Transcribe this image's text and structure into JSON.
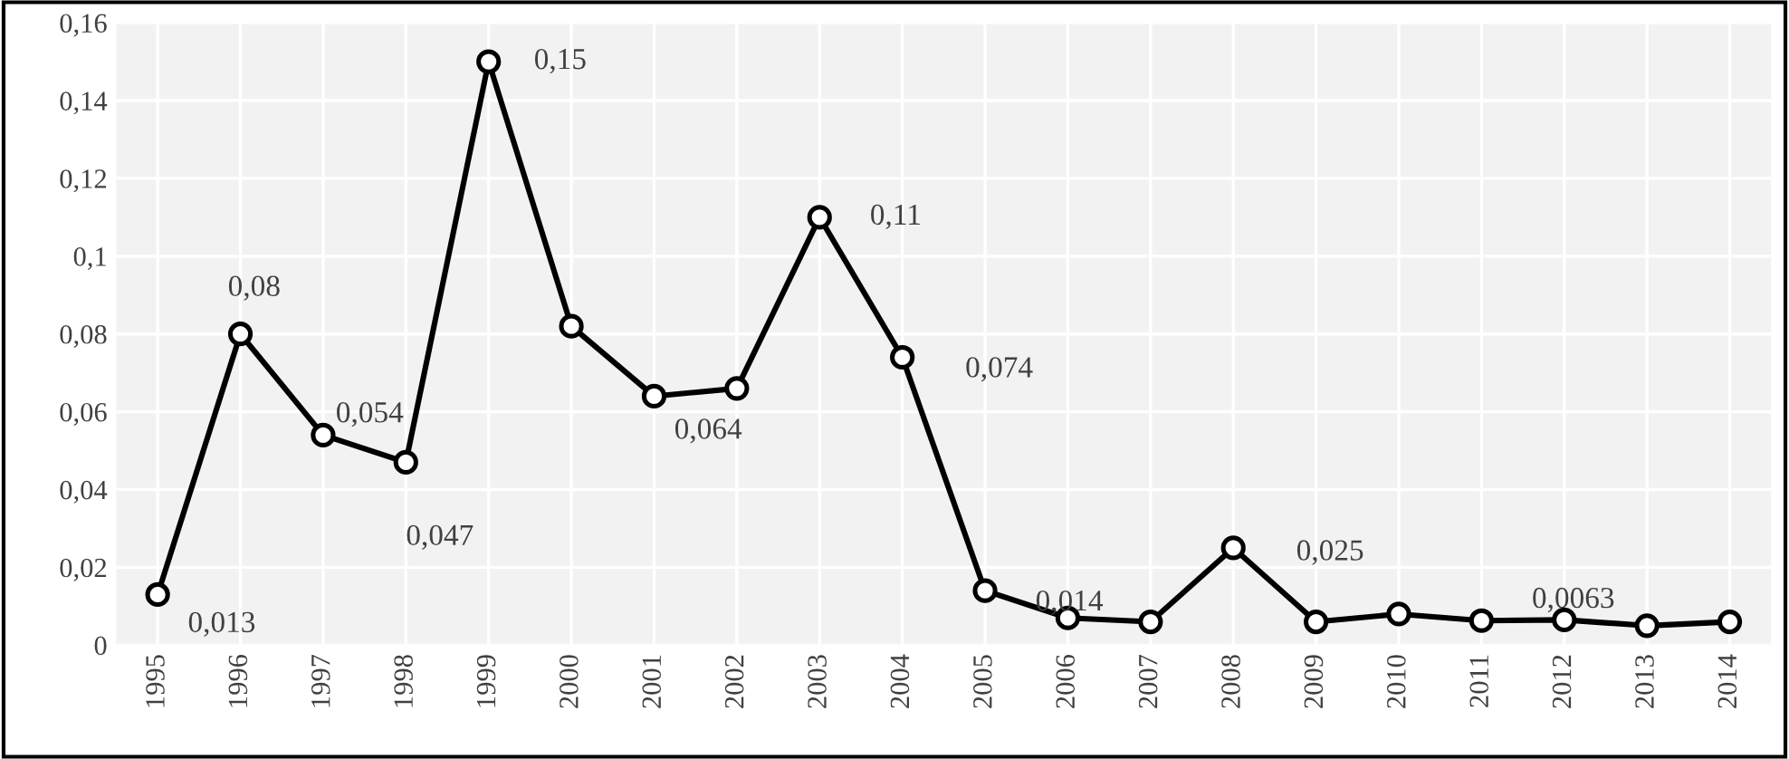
{
  "chart_data": {
    "type": "line",
    "categories": [
      "1995",
      "1996",
      "1997",
      "1998",
      "1999",
      "2000",
      "2001",
      "2002",
      "2003",
      "2004",
      "2005",
      "2006",
      "2007",
      "2008",
      "2009",
      "2010",
      "2011",
      "2012",
      "2013",
      "2014"
    ],
    "series": [
      {
        "color": "#000000",
        "values": [
          0.013,
          0.08,
          0.054,
          0.047,
          0.15,
          0.082,
          0.064,
          0.066,
          0.11,
          0.074,
          0.014,
          0.007,
          0.006,
          0.025,
          0.006,
          0.008,
          0.0063,
          0.0065,
          0.005,
          0.006
        ],
        "value_labels": [
          "0,013",
          "0,08",
          "0,054",
          "0,047",
          "0,15",
          null,
          "0,064",
          null,
          "0,11",
          "0,074",
          "0,014",
          null,
          null,
          "0,025",
          null,
          null,
          "0,0063",
          null,
          null,
          null
        ]
      }
    ],
    "ylim": [
      0,
      0.16
    ],
    "yticks": [
      {
        "value": 0,
        "label": "0"
      },
      {
        "value": 0.02,
        "label": "0,02"
      },
      {
        "value": 0.04,
        "label": "0,04"
      },
      {
        "value": 0.06,
        "label": "0,06"
      },
      {
        "value": 0.08,
        "label": "0,08"
      },
      {
        "value": 0.1,
        "label": "0,1"
      },
      {
        "value": 0.12,
        "label": "0,12"
      },
      {
        "value": 0.14,
        "label": "0,14"
      },
      {
        "value": 0.16,
        "label": "0,16"
      }
    ],
    "grid": true,
    "marker": "circle",
    "line_style": "solid",
    "legend": false
  }
}
